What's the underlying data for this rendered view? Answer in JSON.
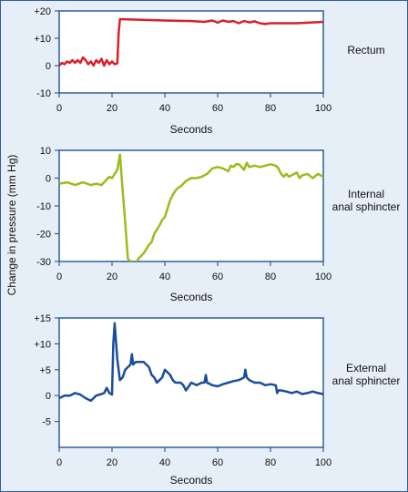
{
  "ylabel_shared": "Change in pressure (mm Hg)",
  "colors": {
    "background": "#e6eef8",
    "plot_background": "#ffffff",
    "frame": "#2e5e9e",
    "rectum_line": "#d8202a",
    "internal_line": "#9bbc1c",
    "external_line": "#1a4d9b"
  },
  "chart_data": [
    {
      "type": "line",
      "panel_label": "Rectum",
      "xlabel": "Seconds",
      "xlim": [
        0,
        100
      ],
      "ylim": [
        -10,
        20
      ],
      "xticks": [
        "0",
        "20",
        "40",
        "60",
        "80",
        "100"
      ],
      "yticks": [
        {
          "value": 20,
          "label": "+20"
        },
        {
          "value": 10,
          "label": "+10"
        },
        {
          "value": 0,
          "label": "0"
        },
        {
          "value": -10,
          "label": "-10"
        }
      ],
      "series": [
        {
          "x": [
            0,
            1,
            2,
            3,
            4,
            5,
            6,
            7,
            8,
            9,
            10,
            11,
            12,
            13,
            14,
            15,
            16,
            17,
            18,
            19,
            20,
            21,
            22,
            22.5,
            23,
            30,
            40,
            50,
            55,
            58,
            60,
            62,
            64,
            66,
            68,
            70,
            72,
            74,
            76,
            78,
            80,
            90,
            100
          ],
          "y": [
            0,
            1,
            0.5,
            1.5,
            1,
            2,
            1,
            2,
            1,
            3,
            2,
            0.5,
            1.5,
            0,
            2,
            1,
            2.5,
            0,
            2,
            0.5,
            1.5,
            0.5,
            0.8,
            12,
            17,
            16.8,
            16.5,
            16.3,
            16,
            16.5,
            15.7,
            16.5,
            16,
            16.3,
            15.5,
            16.3,
            15.8,
            16.2,
            15.5,
            15.2,
            15.5,
            15.5,
            16
          ]
        }
      ]
    },
    {
      "type": "line",
      "panel_label": "Internal\nanal sphincter",
      "xlabel": "Seconds",
      "xlim": [
        0,
        100
      ],
      "ylim": [
        -30,
        10
      ],
      "xticks": [
        "0",
        "20",
        "40",
        "60",
        "80",
        "100"
      ],
      "yticks": [
        {
          "value": 10,
          "label": "10"
        },
        {
          "value": 0,
          "label": "0"
        },
        {
          "value": -10,
          "label": "-10"
        },
        {
          "value": -20,
          "label": "-20"
        },
        {
          "value": -30,
          "label": "-30"
        }
      ],
      "series": [
        {
          "x": [
            0,
            3,
            6,
            9,
            12,
            14,
            16,
            18,
            19,
            20,
            21,
            22,
            23,
            24,
            25,
            26,
            27,
            28,
            29,
            30,
            31,
            32,
            33,
            34,
            35,
            36,
            37,
            38,
            39,
            40,
            41,
            42,
            43,
            44,
            45,
            46,
            47,
            48,
            50,
            52,
            54,
            56,
            58,
            60,
            62,
            63,
            64,
            65,
            66,
            67,
            68,
            69,
            70,
            71,
            72,
            74,
            76,
            78,
            80,
            82,
            83,
            84,
            85,
            86,
            87,
            88,
            90,
            91,
            92,
            94,
            96,
            98,
            100
          ],
          "y": [
            -2,
            -1.5,
            -2.5,
            -1.5,
            -2.5,
            -2,
            -2.5,
            -0.5,
            0.5,
            0,
            1.5,
            3,
            8.5,
            -4,
            -16,
            -29,
            -30,
            -31,
            -30.5,
            -29,
            -28,
            -27,
            -25.5,
            -24,
            -23,
            -20,
            -18.5,
            -17,
            -15,
            -14,
            -11,
            -8,
            -6,
            -4.5,
            -3.5,
            -3,
            -2,
            -1,
            0,
            0,
            0.5,
            1.5,
            3.5,
            4,
            3.5,
            3,
            2.5,
            4.5,
            4,
            5,
            5,
            4,
            3,
            5.5,
            4,
            4.5,
            4,
            4.5,
            5,
            4.5,
            3.5,
            1.5,
            0.5,
            1.5,
            0.5,
            1,
            2,
            0,
            1,
            1.5,
            0,
            1.5,
            0.5
          ]
        }
      ]
    },
    {
      "type": "line",
      "panel_label": "External\nanal sphincter",
      "xlabel": "Seconds",
      "xlim": [
        0,
        100
      ],
      "ylim": [
        -10,
        15
      ],
      "xticks": [
        "0",
        "20",
        "40",
        "60",
        "80",
        "100"
      ],
      "yticks": [
        {
          "value": 15,
          "label": "+15"
        },
        {
          "value": 10,
          "label": "+10"
        },
        {
          "value": 5,
          "label": "+5"
        },
        {
          "value": 0,
          "label": "0"
        },
        {
          "value": -5,
          "label": "-5"
        }
      ],
      "series": [
        {
          "x": [
            0,
            2,
            4,
            6,
            8,
            10,
            12,
            14,
            16,
            17,
            18,
            19,
            20,
            20.5,
            21,
            22,
            23,
            24,
            25,
            26,
            27,
            27.5,
            28,
            29,
            30,
            32,
            34,
            35,
            36,
            37,
            38,
            39,
            40,
            41,
            42,
            43,
            44,
            45,
            46,
            47,
            48,
            50,
            52,
            54,
            55,
            55.5,
            56,
            58,
            60,
            62,
            64,
            66,
            68,
            70,
            70.5,
            71,
            72,
            74,
            76,
            78,
            80,
            82,
            82.5,
            83,
            84,
            86,
            88,
            90,
            92,
            94,
            96,
            98,
            100
          ],
          "y": [
            -0.5,
            0,
            0,
            0.5,
            0.2,
            -0.5,
            -1,
            0,
            0.3,
            0.5,
            1.5,
            0.5,
            0.2,
            10,
            14,
            7,
            3,
            3.5,
            5,
            5.5,
            6,
            8,
            6,
            6.5,
            6.5,
            6.5,
            5.5,
            4,
            3.5,
            2.5,
            3,
            3.5,
            5,
            4.5,
            4,
            3,
            2.5,
            2.5,
            2.5,
            2,
            1,
            2.5,
            2,
            2.5,
            2.5,
            4,
            2.5,
            2,
            1.8,
            2.2,
            2.5,
            2.8,
            3,
            3.5,
            5,
            3.5,
            3,
            2.5,
            2.5,
            2,
            2.2,
            2,
            0.5,
            1,
            1,
            0.8,
            0.5,
            0.8,
            0.3,
            0.5,
            0.8,
            0.5,
            0.3
          ]
        }
      ]
    }
  ]
}
